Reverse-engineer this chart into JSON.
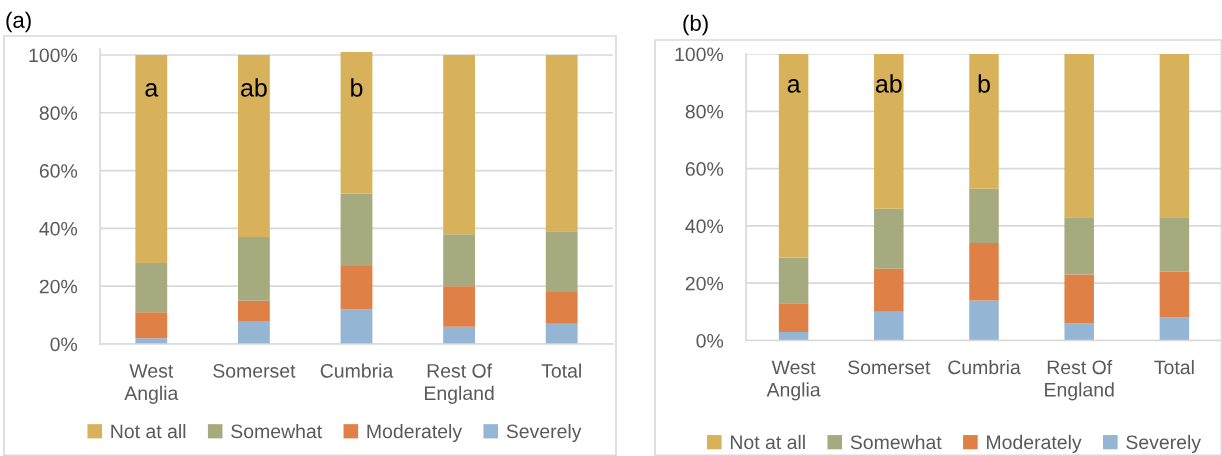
{
  "chart_data": [
    {
      "type": "bar",
      "title": "(a)",
      "stacked": true,
      "categories": [
        "West\nAnglia",
        "Somerset",
        "Cumbria",
        "Rest Of\nEngland",
        "Total"
      ],
      "series": [
        {
          "name": "Severely",
          "color": "#95b5d4",
          "values": [
            2,
            8,
            12,
            6,
            7
          ]
        },
        {
          "name": "Moderately",
          "color": "#df8047",
          "values": [
            9,
            7,
            15,
            14,
            11
          ]
        },
        {
          "name": "Somewhat",
          "color": "#a5ab7f",
          "values": [
            17,
            22,
            25,
            18,
            21
          ]
        },
        {
          "name": "Not at all",
          "color": "#d8b25b",
          "values": [
            72,
            63,
            49,
            62,
            61
          ]
        }
      ],
      "ylim": [
        0,
        102
      ],
      "yticks": [
        {
          "value": 0,
          "label": "0%"
        },
        {
          "value": 20,
          "label": "20%"
        },
        {
          "value": 40,
          "label": "40%"
        },
        {
          "value": 60,
          "label": "60%"
        },
        {
          "value": 80,
          "label": "80%"
        },
        {
          "value": 100,
          "label": "100%"
        }
      ],
      "annotations": [
        "a",
        "ab",
        "b"
      ],
      "grid": "y",
      "legend": "bottom"
    },
    {
      "type": "bar",
      "title": "(b)",
      "stacked": true,
      "categories": [
        "West\nAnglia",
        "Somerset",
        "Cumbria",
        "Rest Of\nEngland",
        "Total"
      ],
      "series": [
        {
          "name": "Severely",
          "color": "#95b5d4",
          "values": [
            3,
            10,
            14,
            6,
            8
          ]
        },
        {
          "name": "Moderately",
          "color": "#df8047",
          "values": [
            10,
            15,
            20,
            17,
            16
          ]
        },
        {
          "name": "Somewhat",
          "color": "#a5ab7f",
          "values": [
            16,
            21,
            19,
            20,
            19
          ]
        },
        {
          "name": "Not at all",
          "color": "#d8b25b",
          "values": [
            71,
            54,
            47,
            57,
            57
          ]
        }
      ],
      "ylim": [
        0,
        100
      ],
      "yticks": [
        {
          "value": 0,
          "label": "0%"
        },
        {
          "value": 20,
          "label": "20%"
        },
        {
          "value": 40,
          "label": "40%"
        },
        {
          "value": 60,
          "label": "60%"
        },
        {
          "value": 80,
          "label": "80%"
        },
        {
          "value": 100,
          "label": "100%"
        }
      ],
      "annotations": [
        "a",
        "ab",
        "b"
      ],
      "grid": "y",
      "legend": "bottom"
    }
  ]
}
